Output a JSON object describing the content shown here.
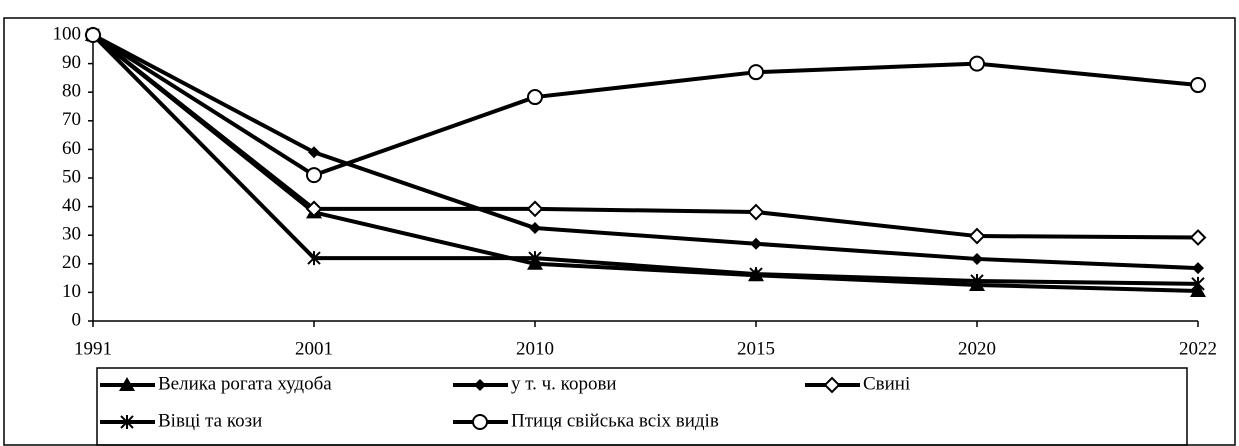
{
  "chart_data": {
    "type": "line",
    "categories": [
      "1991",
      "2001",
      "2010",
      "2015",
      "2020",
      "2022"
    ],
    "series": [
      {
        "name": "Велика рогата худоба",
        "color": "#000000",
        "marker": "triangle",
        "values": [
          100,
          38,
          20,
          16,
          12.6,
          10.5
        ]
      },
      {
        "name": "у т. ч. корови",
        "color": "#000000",
        "marker": "diamond",
        "values": [
          100,
          59,
          32.5,
          27,
          21.7,
          18.5
        ]
      },
      {
        "name": "Свині",
        "color": "#000000",
        "marker": "diamond-open",
        "values": [
          100,
          39.2,
          39.2,
          38.1,
          29.7,
          29.2
        ]
      },
      {
        "name": "Вівці та кози",
        "color": "#000000",
        "marker": "star",
        "values": [
          100,
          22,
          22,
          16.4,
          14,
          13
        ]
      },
      {
        "name": "Птиця свійська всіх видів",
        "color": "#000000",
        "marker": "circle-open",
        "values": [
          100,
          51,
          78.3,
          87,
          90,
          82.5
        ]
      }
    ],
    "ylim": [
      0,
      100
    ],
    "yticks": [
      0,
      10,
      20,
      30,
      40,
      50,
      60,
      70,
      80,
      90,
      100
    ],
    "grid": false,
    "legend": "bottom"
  }
}
